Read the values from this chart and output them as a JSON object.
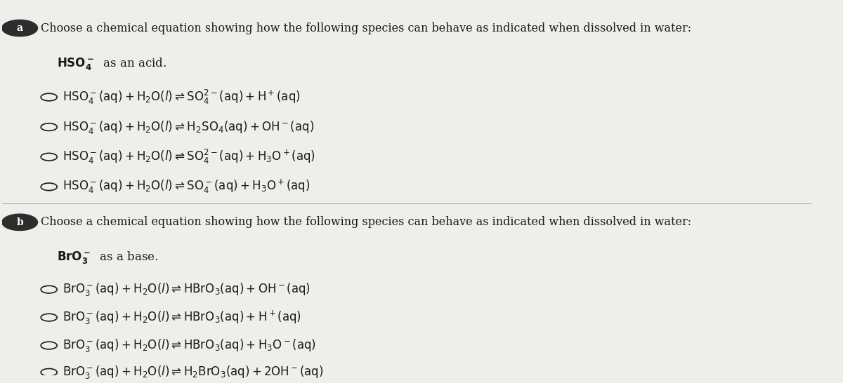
{
  "bg_color": "#f0eeeb",
  "section_a": {
    "label": "a",
    "header": "Choose a chemical equation showing how the following species can behave as indicated when dissolved in water:",
    "species": "$\\mathbf{HSO_4^-}$  as an acid.",
    "options": [
      "$\\mathrm{HSO_4^-(aq) + H_2O(\\mathit{l}) \\rightleftharpoons SO_4^{2-}(aq) + H^+(aq)}$",
      "$\\mathrm{HSO_4^-(aq) + H_2O(\\mathit{l}) \\rightleftharpoons H_2SO_4(aq) + OH^-(aq)}$",
      "$\\mathrm{HSO_4^-(aq) + H_2O(\\mathit{l}) \\rightleftharpoons SO_4^{2-}(aq) + H_3O^+(aq)}$",
      "$\\mathrm{HSO_4^-(aq) + H_2O(\\mathit{l}) \\rightleftharpoons SO_4^-(aq) + H_3O^+(aq)}$"
    ]
  },
  "section_b": {
    "label": "b",
    "header": "Choose a chemical equation showing how the following species can behave as indicated when dissolved in water:",
    "species": "$\\mathbf{BrO_3^-}$  as a base.",
    "options": [
      "$\\mathrm{BrO_3^-(aq) + H_2O(\\mathit{l}) \\rightleftharpoons HBrO_3(aq) + OH^-(aq)}$",
      "$\\mathrm{BrO_3^-(aq) + H_2O(\\mathit{l}) \\rightleftharpoons HBrO_3(aq) + H^+(aq)}$",
      "$\\mathrm{BrO_3^-(aq) + H_2O(\\mathit{l}) \\rightleftharpoons HBrO_3(aq) + H_3O^-(aq)}$",
      "$\\mathrm{BrO_3^-(aq) + H_2O(\\mathit{l}) \\rightleftharpoons H_2BrO_3(aq) + 2OH^-(aq)}$"
    ]
  },
  "text_color": "#1a1a1a",
  "circle_color": "#1a1a1a",
  "label_bg": "#2d2d2d",
  "label_text": "#ffffff",
  "divider_color": "#aaaaaa",
  "font_size_header": 11.5,
  "font_size_species": 12,
  "font_size_option": 12
}
